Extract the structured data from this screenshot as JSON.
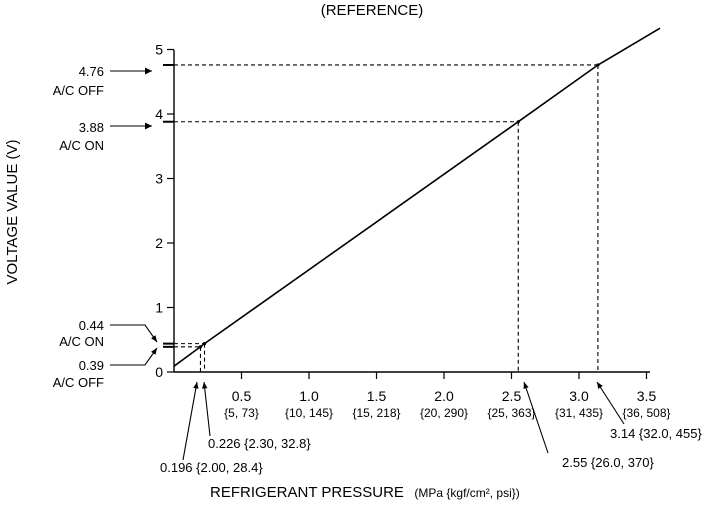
{
  "chart_data": {
    "type": "line",
    "title": "(REFERENCE)",
    "xlabel": "REFRIGERANT PRESSURE",
    "xlabel_units": "(MPa {kgf/cm², psi})",
    "ylabel": "VOLTAGE VALUE (V)",
    "xlim": [
      0,
      3.5
    ],
    "ylim": [
      0,
      5
    ],
    "grid": false,
    "x_ticks": [
      {
        "value": 0.5,
        "label": "0.5",
        "sub": "{5, 73}"
      },
      {
        "value": 1.0,
        "label": "1.0",
        "sub": "{10, 145}"
      },
      {
        "value": 1.5,
        "label": "1.5",
        "sub": "{15, 218}"
      },
      {
        "value": 2.0,
        "label": "2.0",
        "sub": "{20, 290}"
      },
      {
        "value": 2.5,
        "label": "2.5",
        "sub": "{25, 363}"
      },
      {
        "value": 3.0,
        "label": "3.0",
        "sub": "{31, 435}"
      },
      {
        "value": 3.5,
        "label": "3.5",
        "sub": "{36, 508}"
      }
    ],
    "y_ticks": [
      {
        "value": 0,
        "label": "0"
      },
      {
        "value": 1,
        "label": "1"
      },
      {
        "value": 2,
        "label": "2"
      },
      {
        "value": 3,
        "label": "3"
      },
      {
        "value": 4,
        "label": "4"
      },
      {
        "value": 5,
        "label": "5"
      }
    ],
    "series": [
      {
        "x": [
          0.0,
          0.196,
          0.226,
          2.55,
          3.14,
          3.6
        ],
        "y": [
          0.09,
          0.39,
          0.44,
          3.88,
          4.76,
          5.33
        ]
      }
    ],
    "points": [
      {
        "x": 0.196,
        "y": 0.39
      },
      {
        "x": 0.226,
        "y": 0.44
      },
      {
        "x": 2.55,
        "y": 3.88
      },
      {
        "x": 3.14,
        "y": 4.76
      }
    ],
    "y_callouts": [
      {
        "value": "4.76",
        "state": "A/C OFF",
        "y": 4.76
      },
      {
        "value": "3.88",
        "state": "A/C ON",
        "y": 3.88
      },
      {
        "value": "0.44",
        "state": "A/C ON",
        "y": 0.44
      },
      {
        "value": "0.39",
        "state": "A/C OFF",
        "y": 0.39
      }
    ],
    "x_callouts": [
      {
        "text": "0.196 {2.00, 28.4}",
        "x": 0.196
      },
      {
        "text": "0.226 {2.30, 32.8}",
        "x": 0.226
      },
      {
        "text": "2.55 {26.0, 370}",
        "x": 2.55
      },
      {
        "text": "3.14 {32.0, 455}",
        "x": 3.14
      }
    ]
  }
}
